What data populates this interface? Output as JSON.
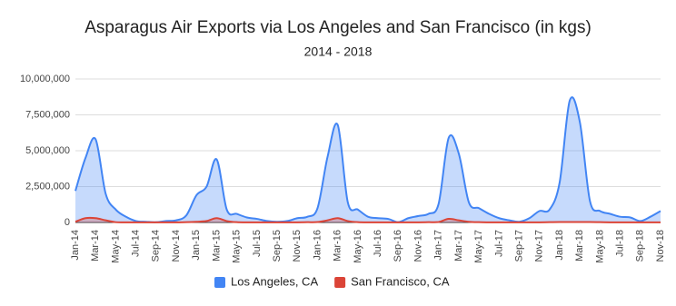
{
  "chart_data": {
    "type": "area",
    "title": "Asparagus Air Exports via Los Angeles and San Francisco (in kgs)",
    "subtitle": "2014 - 2018",
    "categories": [
      "Jan-14",
      null,
      "Mar-14",
      null,
      "May-14",
      null,
      "Jul-14",
      null,
      "Sep-14",
      null,
      "Nov-14",
      null,
      "Jan-15",
      null,
      "Mar-15",
      null,
      "May-15",
      null,
      "Jul-15",
      null,
      "Sep-15",
      null,
      "Nov-15",
      null,
      "Jan-16",
      null,
      "Mar-16",
      null,
      "May-16",
      null,
      "Jul-16",
      null,
      "Sep-16",
      null,
      "Nov-16",
      null,
      "Jan-17",
      null,
      "Mar-17",
      null,
      "May-17",
      null,
      "Jul-17",
      null,
      "Sep-17",
      null,
      "Nov-17",
      null,
      "Jan-18",
      null,
      "Mar-18",
      null,
      "May-18",
      null,
      "Jul-18",
      null,
      "Sep-18",
      null,
      "Nov-18"
    ],
    "series": [
      {
        "name": "Los Angeles, CA",
        "color": "#4285f4",
        "values": [
          2200000,
          4500000,
          5800000,
          2000000,
          900000,
          400000,
          100000,
          50000,
          20000,
          100000,
          150000,
          500000,
          1900000,
          2500000,
          4400000,
          900000,
          600000,
          350000,
          250000,
          100000,
          50000,
          100000,
          300000,
          400000,
          1000000,
          4600000,
          6800000,
          1400000,
          900000,
          400000,
          300000,
          250000,
          20000,
          300000,
          450000,
          600000,
          1300000,
          5900000,
          4800000,
          1400000,
          1000000,
          600000,
          300000,
          150000,
          50000,
          300000,
          800000,
          900000,
          2800000,
          8500000,
          7000000,
          1500000,
          800000,
          600000,
          400000,
          350000,
          100000,
          400000,
          800000
        ]
      },
      {
        "name": "San Francisco, CA",
        "color": "#db4437",
        "values": [
          50000,
          300000,
          300000,
          150000,
          20000,
          10000,
          5000,
          5000,
          5000,
          5000,
          10000,
          20000,
          50000,
          100000,
          300000,
          100000,
          20000,
          10000,
          5000,
          5000,
          5000,
          5000,
          10000,
          20000,
          30000,
          150000,
          300000,
          100000,
          20000,
          10000,
          5000,
          5000,
          5000,
          5000,
          10000,
          20000,
          30000,
          250000,
          150000,
          50000,
          20000,
          10000,
          5000,
          5000,
          5000,
          5000,
          10000,
          20000,
          30000,
          30000,
          30000,
          30000,
          20000,
          10000,
          5000,
          5000,
          5000,
          5000,
          10000
        ]
      }
    ],
    "ylim": [
      0,
      10000000
    ],
    "yticks": [
      0,
      {
        "value": 2500000,
        "label": "2,500,000"
      },
      {
        "value": 5000000,
        "label": "5,000,000"
      },
      {
        "value": 7500000,
        "label": "7,500,000"
      },
      {
        "value": 10000000,
        "label": "10,000,000"
      }
    ],
    "grid": true,
    "legend": "bottom"
  }
}
